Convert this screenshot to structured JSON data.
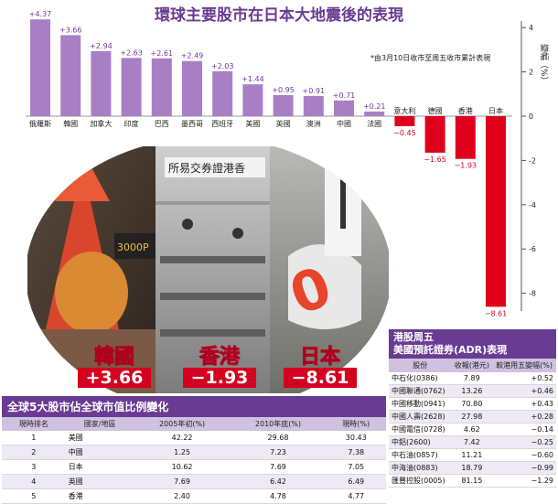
{
  "headline": "環球主要股市在日本大地震後的表現",
  "note": "*由3月10日收市至周五收市累計表現",
  "colors": {
    "positive": "#a87fc4",
    "negative": "#e0001b",
    "title": "#6a3b93"
  },
  "chart_data": {
    "type": "bar",
    "title": "環球主要股市在日本大地震後的表現",
    "ylabel": "變幅（%）",
    "ylim": [
      -9,
      4.5
    ],
    "yticks": [
      "4",
      "2",
      "0",
      "-2",
      "-4",
      "-6",
      "-8"
    ],
    "categories": [
      "俄羅斯",
      "韓國",
      "加拿大",
      "印度",
      "巴西",
      "墨西哥",
      "西班牙",
      "美國",
      "英國",
      "澳洲",
      "中國",
      "法國",
      "意大利",
      "德國",
      "香港",
      "日本"
    ],
    "values": [
      4.37,
      3.66,
      2.94,
      2.63,
      2.61,
      2.49,
      2.03,
      1.44,
      0.95,
      0.91,
      0.71,
      0.21,
      -0.45,
      -1.65,
      -1.93,
      -8.61
    ],
    "labels": [
      "+4.37",
      "+3.66",
      "+2.94",
      "+2.63",
      "+2.61",
      "+2.49",
      "+2.03",
      "+1.44",
      "+0.95",
      "+0.91",
      "+0.71",
      "+0.21",
      "−0.45",
      "−1.65",
      "−1.93",
      "−8.61"
    ]
  },
  "highlights": [
    {
      "name": "韓國",
      "value": "+3.66"
    },
    {
      "name": "香港",
      "value": "−1.93"
    },
    {
      "name": "日本",
      "value": "−8.61"
    }
  ],
  "market_cap_table": {
    "title": "全球5大股市佔全球市值比例變化",
    "headers": [
      "現時排名",
      "國家/地區",
      "2005年初(%)",
      "2010年底(%)",
      "現時(%)"
    ],
    "rows": [
      [
        "1",
        "美國",
        "42.22",
        "29.68",
        "30.43"
      ],
      [
        "2",
        "中國",
        "1.25",
        "7.23",
        "7.38"
      ],
      [
        "3",
        "日本",
        "10.62",
        "7.69",
        "7.05"
      ],
      [
        "4",
        "英國",
        "7.69",
        "6.42",
        "6.49"
      ],
      [
        "5",
        "香港",
        "2.40",
        "4.78",
        "4.77"
      ]
    ]
  },
  "adr_table": {
    "title_line1": "港股周五",
    "title_line2": "美國預託證券(ADR)表現",
    "headers": [
      "股份",
      "收報(港元)",
      "較港用五變幅(%)"
    ],
    "rows": [
      [
        "中石化(0386)",
        "7.89",
        "+0.52"
      ],
      [
        "中國聯通(0762)",
        "13.26",
        "+0.46"
      ],
      [
        "中國移動(0941)",
        "70.80",
        "+0.43"
      ],
      [
        "中國人壽(2628)",
        "27.98",
        "+0.28"
      ],
      [
        "中國電信(0728)",
        "4.62",
        "−0.14"
      ],
      [
        "中鋁(2600)",
        "7.42",
        "−0.25"
      ],
      [
        "中石油(0857)",
        "11.21",
        "−0.60"
      ],
      [
        "中海油(0883)",
        "18.79",
        "−0.99"
      ],
      [
        "匯豐控股(0005)",
        "81.15",
        "−1.29"
      ]
    ]
  },
  "photo_signs": {
    "sign1": "3000P",
    "sign2": "所易交券證港香"
  }
}
